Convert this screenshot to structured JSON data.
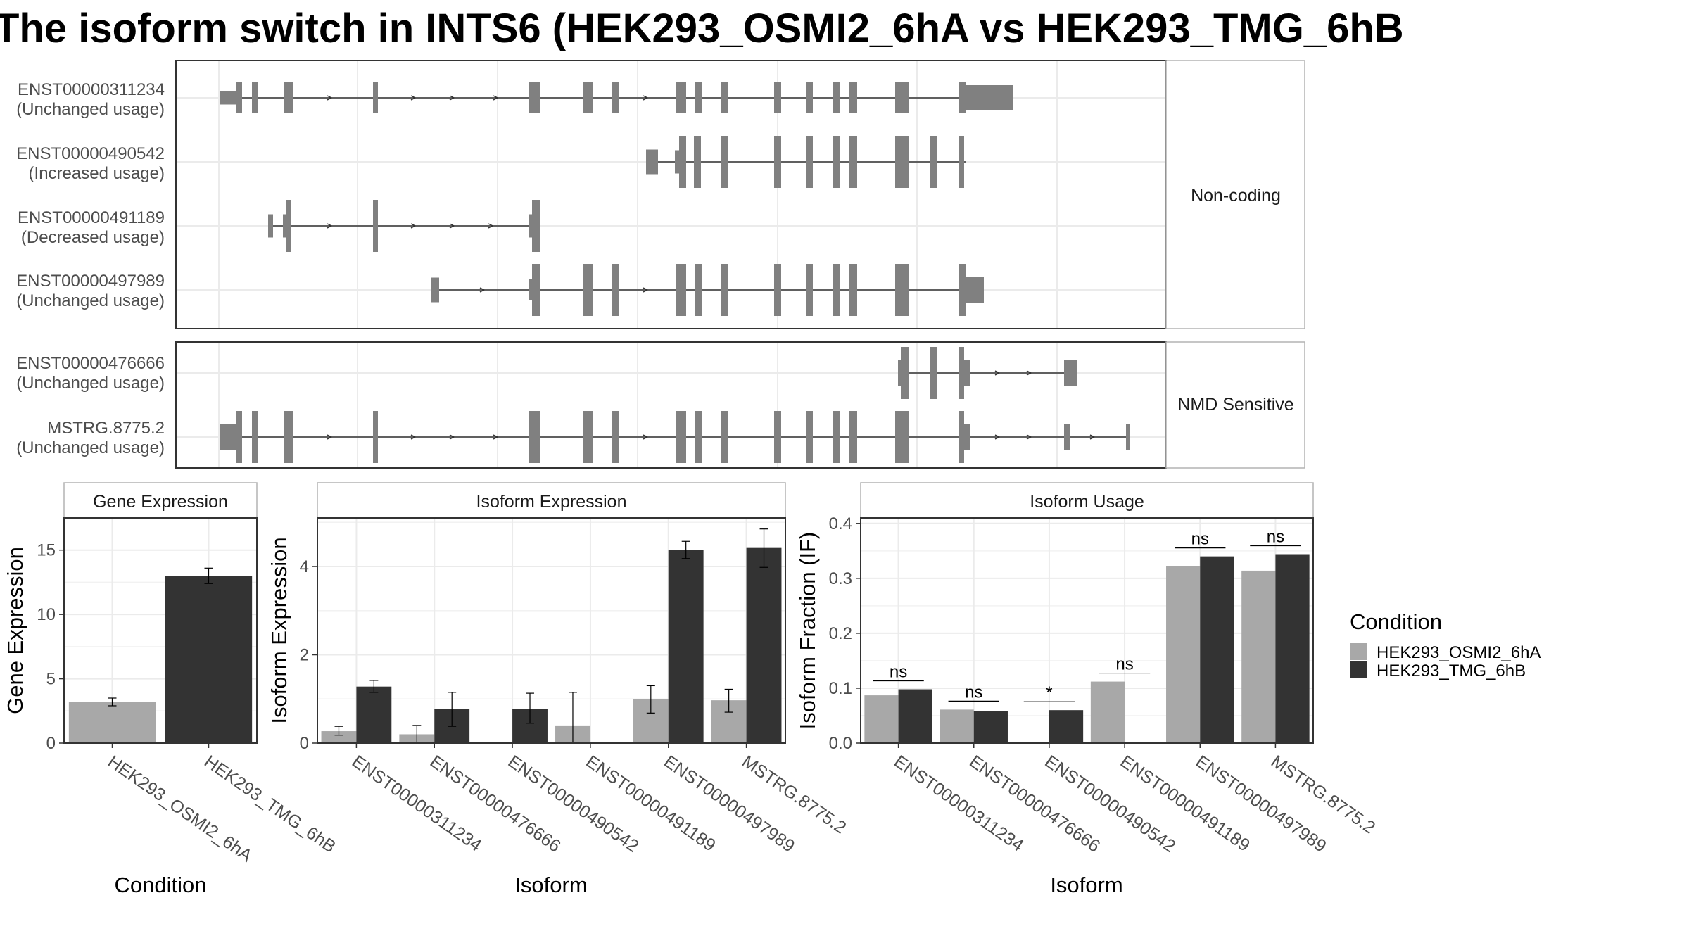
{
  "title": "The isoform switch in INTS6 (HEK293_OSMI2_6hA vs HEK293_TMG_6hB",
  "colors": {
    "condition_a": "#a8a8a8",
    "condition_b": "#333333",
    "exon": "#808080",
    "grid": "#ebebeb",
    "panel_border": "#333333",
    "strip_border": "#b3b3b3"
  },
  "transcript_structure": {
    "groups": [
      {
        "name": "Non-coding",
        "transcripts": [
          {
            "id": "ENST00000311234",
            "usage": "(Unchanged usage)"
          },
          {
            "id": "ENST00000490542",
            "usage": "(Increased usage)"
          },
          {
            "id": "ENST00000491189",
            "usage": "(Decreased usage)"
          },
          {
            "id": "ENST00000497989",
            "usage": "(Unchanged usage)"
          }
        ]
      },
      {
        "name": "NMD Sensitive",
        "transcripts": [
          {
            "id": "ENST00000476666",
            "usage": "(Unchanged usage)"
          },
          {
            "id": "MSTRG.8775.2",
            "usage": "(Unchanged usage)"
          }
        ]
      }
    ]
  },
  "chart_data": [
    {
      "type": "bar",
      "strip": "Gene Expression",
      "ylabel": "Gene Expression",
      "xlabel": "Condition",
      "ylim": [
        0,
        17.5
      ],
      "yticks": [
        0,
        5,
        10,
        15
      ],
      "categories": [
        "HEK293_OSMI2_6hA",
        "HEK293_TMG_6hB"
      ],
      "values": [
        3.2,
        13.0
      ],
      "errors": [
        [
          2.9,
          3.5
        ],
        [
          12.4,
          13.6
        ]
      ]
    },
    {
      "type": "bar",
      "strip": "Isoform Expression",
      "ylabel": "Isoform Expression",
      "xlabel": "Isoform",
      "ylim": [
        0,
        5.1
      ],
      "yticks": [
        0,
        2,
        4
      ],
      "categories": [
        "ENST00000311234",
        "ENST00000476666",
        "ENST00000490542",
        "ENST00000491189",
        "ENST00000497989",
        "MSTRG.8775.2"
      ],
      "series": [
        {
          "name": "HEK293_OSMI2_6hA",
          "values": [
            0.27,
            0.2,
            0.0,
            0.4,
            1.0,
            0.97
          ],
          "errors": [
            [
              0.18,
              0.38
            ],
            [
              0.0,
              0.4
            ],
            [
              0.0,
              0.0
            ],
            [
              0.0,
              1.15
            ],
            [
              0.68,
              1.3
            ],
            [
              0.7,
              1.22
            ]
          ]
        },
        {
          "name": "HEK293_TMG_6hB",
          "values": [
            1.28,
            0.77,
            0.78,
            0.0,
            4.37,
            4.42
          ],
          "errors": [
            [
              1.15,
              1.42
            ],
            [
              0.38,
              1.15
            ],
            [
              0.45,
              1.13
            ],
            [
              0.0,
              0.0
            ],
            [
              4.18,
              4.57
            ],
            [
              3.98,
              4.85
            ]
          ]
        }
      ]
    },
    {
      "type": "bar",
      "strip": "Isoform Usage",
      "ylabel": "Isoform Fraction (IF)",
      "xlabel": "Isoform",
      "ylim": [
        0,
        0.41
      ],
      "yticks": [
        "0.0",
        "0.1",
        "0.2",
        "0.3",
        "0.4"
      ],
      "categories": [
        "ENST00000311234",
        "ENST00000476666",
        "ENST00000490542",
        "ENST00000491189",
        "ENST00000497989",
        "MSTRG.8775.2"
      ],
      "series": [
        {
          "name": "HEK293_OSMI2_6hA",
          "values": [
            0.087,
            0.061,
            0.0,
            0.112,
            0.322,
            0.314
          ]
        },
        {
          "name": "HEK293_TMG_6hB",
          "values": [
            0.098,
            0.058,
            0.06,
            0.0,
            0.34,
            0.344
          ]
        }
      ],
      "significance": [
        "ns",
        "ns",
        "*",
        "ns",
        "ns",
        "ns"
      ]
    }
  ],
  "legend": {
    "title": "Condition",
    "entries": [
      "HEK293_OSMI2_6hA",
      "HEK293_TMG_6hB"
    ]
  }
}
